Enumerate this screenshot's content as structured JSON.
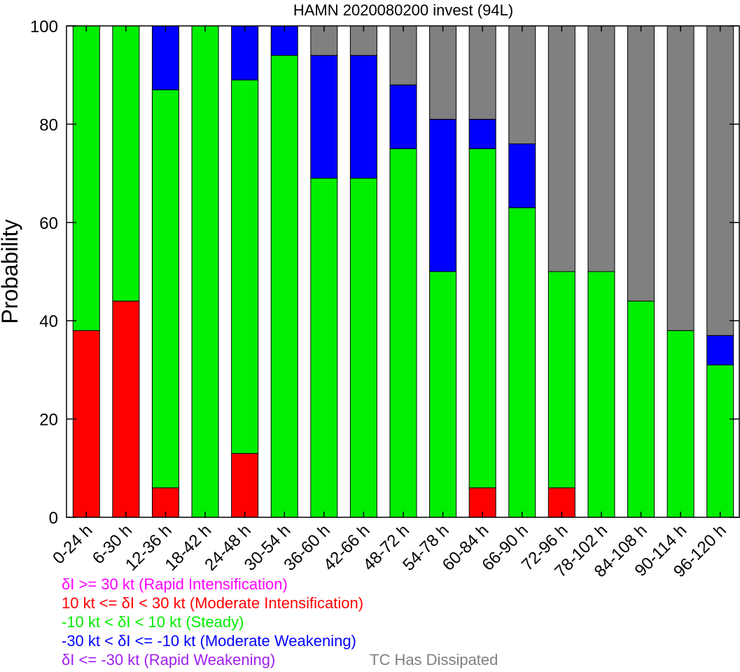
{
  "chart_data": {
    "type": "bar",
    "stacked": true,
    "title": "HAMN 2020080200 invest (94L)",
    "xlabel": "",
    "ylabel": "Probability",
    "ylim": [
      0,
      100
    ],
    "yticks": [
      0,
      20,
      40,
      60,
      80,
      100
    ],
    "grid": false,
    "categories": [
      "0-24 h",
      "6-30 h",
      "12-36 h",
      "18-42 h",
      "24-48 h",
      "30-54 h",
      "36-60 h",
      "42-66 h",
      "48-72 h",
      "54-78 h",
      "60-84 h",
      "66-90 h",
      "72-96 h",
      "78-102 h",
      "84-108 h",
      "90-114 h",
      "96-120 h"
    ],
    "series": [
      {
        "key": "ri",
        "color": "#ff00ff",
        "values": [
          0,
          0,
          0,
          0,
          0,
          0,
          0,
          0,
          0,
          0,
          0,
          0,
          0,
          0,
          0,
          0,
          0
        ]
      },
      {
        "key": "mi",
        "color": "#ff0000",
        "values": [
          38,
          44,
          6,
          0,
          13,
          0,
          0,
          0,
          0,
          0,
          6,
          0,
          6,
          0,
          0,
          0,
          0
        ]
      },
      {
        "key": "steady",
        "color": "#00ee00",
        "values": [
          62,
          56,
          81,
          100,
          76,
          94,
          69,
          69,
          75,
          50,
          69,
          63,
          44,
          50,
          44,
          38,
          31
        ]
      },
      {
        "key": "mw",
        "color": "#0000ff",
        "values": [
          0,
          0,
          13,
          0,
          11,
          6,
          25,
          25,
          13,
          31,
          6,
          13,
          0,
          0,
          0,
          0,
          6
        ]
      },
      {
        "key": "rw",
        "color": "#a020f0",
        "values": [
          0,
          0,
          0,
          0,
          0,
          0,
          0,
          0,
          0,
          0,
          0,
          0,
          0,
          0,
          0,
          0,
          0
        ]
      },
      {
        "key": "dissipated",
        "color": "#808080",
        "values": [
          0,
          0,
          0,
          0,
          0,
          0,
          6,
          6,
          12,
          19,
          19,
          24,
          50,
          50,
          56,
          62,
          63
        ]
      }
    ],
    "legend": [
      {
        "text": "δI >= 30 kt (Rapid Intensification)",
        "color": "#ff00ff"
      },
      {
        "text": "10 kt <= δI < 30 kt (Moderate Intensification)",
        "color": "#ff0000"
      },
      {
        "text": "-10 kt < δI < 10 kt (Steady)",
        "color": "#00ee00"
      },
      {
        "text": "-30 kt < δI <= -10 kt (Moderate Weakening)",
        "color": "#0000ff"
      },
      {
        "text": "δI <= -30 kt (Rapid Weakening)",
        "color": "#a020f0"
      },
      {
        "text": "TC Has Dissipated",
        "color": "#808080"
      }
    ],
    "legend_position": "below-left"
  }
}
